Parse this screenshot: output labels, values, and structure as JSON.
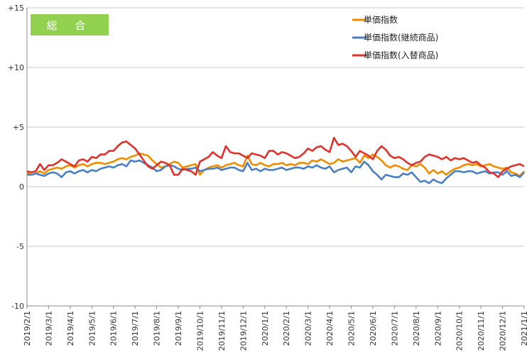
{
  "badge": {
    "label": "総 合",
    "color": "#92d050"
  },
  "colors": {
    "unit_price_index": "#f08c00",
    "continuing": "#4a7fc4",
    "replacement": "#e0312a",
    "grid": "#c8c8c8",
    "axis": "#888888"
  },
  "chart_data": {
    "type": "line",
    "title": "",
    "xlabel": "",
    "ylabel": "",
    "ylim": [
      -10,
      15
    ],
    "y_ticks": [
      {
        "value": 15,
        "label": "+15"
      },
      {
        "value": 10,
        "label": "+10"
      },
      {
        "value": 5,
        "label": "+5"
      },
      {
        "value": 0,
        "label": "0"
      },
      {
        "value": -5,
        "label": "-5"
      },
      {
        "value": -10,
        "label": "-10"
      }
    ],
    "x_ticks": [
      "2019/2/1",
      "2019/3/1",
      "2019/4/1",
      "2019/5/1",
      "2019/6/1",
      "2019/7/1",
      "2019/8/1",
      "2019/9/1",
      "2019/10/1",
      "2019/11/1",
      "2019/12/1",
      "2020/1/1",
      "2020/2/1",
      "2020/3/1",
      "2020/4/1",
      "2020/5/1",
      "2020/6/1",
      "2020/7/1",
      "2020/8/1",
      "2020/9/1",
      "2020/10/1",
      "2020/11/1",
      "2020/12/1",
      "2021/1/1"
    ],
    "x_range": [
      "2019/2/1",
      "2021/1/1"
    ],
    "grid": "horizontal",
    "legend_position": "top-right",
    "series": [
      {
        "name": "単価指数",
        "color_key": "unit_price_index",
        "values": [
          1.2,
          1.0,
          1.1,
          1.3,
          1.1,
          1.4,
          1.5,
          1.6,
          1.5,
          1.7,
          1.8,
          1.6,
          1.8,
          1.9,
          1.7,
          1.9,
          2.0,
          2.0,
          1.9,
          2.0,
          2.1,
          2.3,
          2.4,
          2.3,
          2.5,
          2.6,
          2.8,
          2.7,
          2.6,
          2.2,
          1.9,
          1.6,
          1.7,
          1.9,
          2.1,
          2.0,
          1.6,
          1.7,
          1.8,
          1.9,
          1.0,
          1.4,
          1.6,
          1.7,
          1.8,
          1.6,
          1.8,
          1.9,
          2.0,
          1.8,
          1.7,
          2.6,
          1.9,
          1.8,
          2.0,
          1.8,
          1.7,
          1.9,
          1.9,
          2.0,
          1.8,
          1.9,
          1.8,
          2.0,
          2.0,
          1.9,
          2.2,
          2.1,
          2.3,
          2.1,
          1.9,
          2.0,
          2.3,
          2.1,
          2.2,
          2.3,
          2.4,
          2.0,
          2.6,
          2.4,
          2.7,
          2.5,
          2.2,
          1.8,
          1.6,
          1.8,
          1.7,
          1.5,
          1.4,
          1.8,
          1.7,
          1.9,
          1.6,
          1.1,
          1.4,
          1.1,
          1.3,
          1.0,
          1.3,
          1.5,
          1.6,
          1.8,
          1.9,
          1.8,
          1.9,
          1.7,
          1.8,
          1.9,
          1.7,
          1.6,
          1.5,
          1.6,
          1.2,
          1.1,
          0.9,
          1.3
        ]
      },
      {
        "name": "単価指数(継続商品)",
        "color_key": "continuing",
        "values": [
          1.0,
          1.0,
          1.1,
          1.0,
          0.9,
          1.1,
          1.2,
          1.1,
          0.8,
          1.2,
          1.3,
          1.1,
          1.3,
          1.4,
          1.2,
          1.4,
          1.3,
          1.5,
          1.6,
          1.7,
          1.6,
          1.8,
          1.9,
          1.7,
          2.2,
          2.1,
          2.2,
          2.0,
          1.8,
          1.6,
          1.3,
          1.4,
          1.7,
          1.8,
          1.7,
          1.5,
          1.4,
          1.5,
          1.5,
          1.6,
          1.3,
          1.4,
          1.5,
          1.5,
          1.6,
          1.4,
          1.5,
          1.6,
          1.6,
          1.4,
          1.3,
          2.0,
          1.4,
          1.5,
          1.3,
          1.5,
          1.4,
          1.4,
          1.5,
          1.6,
          1.4,
          1.5,
          1.6,
          1.6,
          1.5,
          1.7,
          1.6,
          1.8,
          1.6,
          1.5,
          1.7,
          1.2,
          1.4,
          1.5,
          1.6,
          1.2,
          1.7,
          1.6,
          2.1,
          1.8,
          1.3,
          1.0,
          0.6,
          1.0,
          0.9,
          0.8,
          0.8,
          1.1,
          1.0,
          1.2,
          0.8,
          0.4,
          0.5,
          0.3,
          0.6,
          0.4,
          0.3,
          0.7,
          1.0,
          1.3,
          1.3,
          1.2,
          1.3,
          1.3,
          1.1,
          1.2,
          1.3,
          1.1,
          1.2,
          1.2,
          1.0,
          1.3,
          0.9,
          1.0,
          0.8,
          1.2
        ]
      },
      {
        "name": "単価指数(入替商品)",
        "color_key": "replacement",
        "values": [
          1.3,
          1.2,
          1.3,
          1.9,
          1.4,
          1.8,
          1.8,
          2.0,
          2.3,
          2.1,
          1.9,
          1.7,
          2.2,
          2.3,
          2.1,
          2.5,
          2.4,
          2.7,
          2.7,
          3.0,
          3.0,
          3.4,
          3.7,
          3.8,
          3.5,
          3.2,
          2.7,
          2.2,
          1.7,
          1.5,
          1.8,
          2.1,
          2.0,
          1.8,
          1.0,
          1.0,
          1.5,
          1.4,
          1.3,
          1.0,
          2.1,
          2.3,
          2.5,
          2.9,
          2.6,
          2.4,
          3.4,
          2.9,
          2.8,
          2.8,
          2.6,
          2.4,
          2.8,
          2.7,
          2.6,
          2.4,
          3.0,
          3.0,
          2.7,
          2.9,
          2.8,
          2.6,
          2.4,
          2.5,
          2.8,
          3.2,
          3.0,
          3.3,
          3.4,
          3.1,
          2.9,
          4.1,
          3.5,
          3.6,
          3.4,
          3.0,
          2.5,
          3.0,
          2.8,
          2.6,
          2.3,
          3.0,
          3.4,
          3.1,
          2.6,
          2.4,
          2.5,
          2.3,
          2.0,
          1.8,
          2.0,
          2.1,
          2.5,
          2.7,
          2.6,
          2.5,
          2.3,
          2.5,
          2.2,
          2.4,
          2.3,
          2.4,
          2.2,
          2.0,
          2.1,
          1.8,
          1.6,
          1.2,
          1.1,
          0.8,
          1.3,
          1.5,
          1.7,
          1.8,
          1.9,
          1.7
        ]
      }
    ]
  }
}
